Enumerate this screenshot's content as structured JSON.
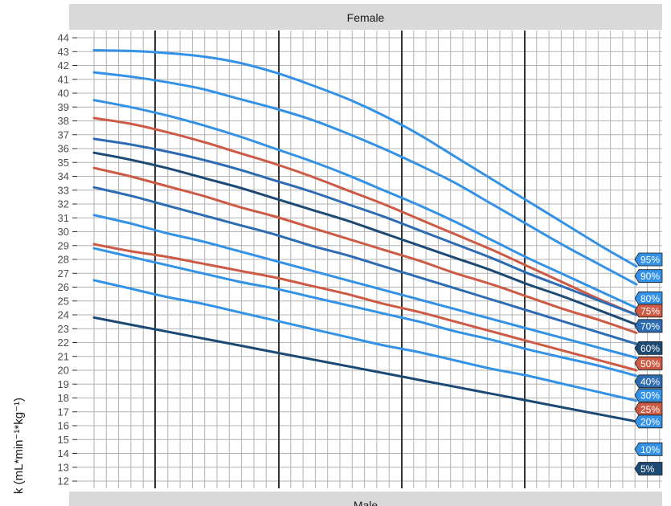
{
  "chart_data": {
    "type": "line",
    "panels": [
      {
        "title": "Female",
        "visible": true
      },
      {
        "title": "Male",
        "visible": false
      }
    ],
    "ylabel_visible": "k (mL*min⁻¹*kg⁻¹)",
    "ylim": [
      12,
      44
    ],
    "yticks": [
      "12",
      "13",
      "14",
      "15",
      "16",
      "17",
      "18",
      "19",
      "20",
      "21",
      "22",
      "23",
      "24",
      "25",
      "26",
      "27",
      "28",
      "29",
      "30",
      "31",
      "32",
      "33",
      "34",
      "35",
      "36",
      "37",
      "38",
      "39",
      "40",
      "41",
      "42",
      "43",
      "44"
    ],
    "x_major_ticks": 4,
    "grid": true,
    "colors": {
      "light": "#3392e6",
      "mid": "#2d6bb3",
      "dark": "#1d4a74",
      "quartile": "#cd5a45",
      "strip_bg": "#d9d9d9",
      "grid": "#b3b3b3",
      "major_grid": "#333333"
    },
    "series": [
      {
        "name": "95%",
        "color": "#3392e6",
        "label_bg": "#3392e6",
        "values": [
          43.1,
          43.05,
          42.9,
          42.65,
          42.2,
          41.5,
          40.6,
          39.6,
          38.4,
          37.0,
          35.4,
          33.8,
          32.2,
          30.6,
          29.0,
          27.5
        ]
      },
      {
        "name": "90%",
        "color": "#3392e6",
        "label_bg": "#3392e6",
        "values": [
          41.5,
          41.2,
          40.8,
          40.3,
          39.6,
          38.9,
          38.1,
          37.1,
          36.0,
          34.8,
          33.5,
          32.0,
          30.5,
          29.0,
          27.6,
          26.2
        ]
      },
      {
        "name": "80%",
        "color": "#3392e6",
        "label_bg": "#3392e6",
        "values": [
          39.5,
          39.0,
          38.4,
          37.7,
          36.9,
          36.0,
          35.1,
          34.1,
          33.0,
          31.9,
          30.7,
          29.4,
          28.1,
          26.9,
          25.7,
          24.5
        ]
      },
      {
        "name": "75%",
        "color": "#cd5a45",
        "label_bg": "#cd5a45",
        "values": [
          38.2,
          37.8,
          37.2,
          36.5,
          35.7,
          34.9,
          34.0,
          33.0,
          32.0,
          30.9,
          29.8,
          28.7,
          27.5,
          26.3,
          25.1,
          24.0
        ]
      },
      {
        "name": "70%",
        "color": "#2d6bb3",
        "label_bg": "#2d6bb3",
        "values": [
          36.7,
          36.3,
          35.8,
          35.2,
          34.5,
          33.7,
          32.9,
          32.0,
          31.1,
          30.1,
          29.1,
          28.1,
          27.0,
          26.0,
          25.0,
          24.0
        ]
      },
      {
        "name": "60%",
        "color": "#1d4a74",
        "label_bg": "#1d4a74",
        "values": [
          35.7,
          35.2,
          34.6,
          33.9,
          33.2,
          32.4,
          31.6,
          30.8,
          29.9,
          29.0,
          28.1,
          27.2,
          26.2,
          25.3,
          24.3,
          23.3
        ]
      },
      {
        "name": "50%",
        "color": "#cd5a45",
        "label_bg": "#cd5a45",
        "values": [
          34.6,
          34.0,
          33.3,
          32.6,
          31.8,
          31.1,
          30.3,
          29.5,
          28.7,
          27.9,
          27.0,
          26.2,
          25.3,
          24.4,
          23.6,
          22.7
        ]
      },
      {
        "name": "40%",
        "color": "#2d6bb3",
        "label_bg": "#2d6bb3",
        "values": [
          33.2,
          32.6,
          31.9,
          31.2,
          30.5,
          29.8,
          29.0,
          28.3,
          27.5,
          26.7,
          25.9,
          25.1,
          24.3,
          23.5,
          22.7,
          21.9
        ]
      },
      {
        "name": "30%",
        "color": "#3392e6",
        "label_bg": "#3392e6",
        "values": [
          31.2,
          30.6,
          29.9,
          29.3,
          28.6,
          27.9,
          27.2,
          26.5,
          25.8,
          25.1,
          24.4,
          23.7,
          23.0,
          22.3,
          21.6,
          20.9
        ]
      },
      {
        "name": "25%",
        "color": "#cd5a45",
        "label_bg": "#cd5a45",
        "values": [
          29.1,
          28.6,
          28.2,
          27.7,
          27.2,
          26.7,
          26.1,
          25.5,
          24.8,
          24.2,
          23.5,
          22.8,
          22.1,
          21.4,
          20.7,
          20.0
        ]
      },
      {
        "name": "20%",
        "color": "#3392e6",
        "label_bg": "#3392e6",
        "values": [
          28.8,
          28.2,
          27.6,
          27.0,
          26.4,
          25.9,
          25.3,
          24.7,
          24.1,
          23.5,
          22.8,
          22.2,
          21.5,
          20.9,
          20.3,
          19.6
        ]
      },
      {
        "name": "10%",
        "color": "#3392e6",
        "label_bg": "#3392e6",
        "values": [
          26.5,
          25.9,
          25.3,
          24.8,
          24.2,
          23.6,
          23.0,
          22.4,
          21.8,
          21.3,
          20.7,
          20.1,
          19.6,
          19.0,
          18.4,
          17.8
        ]
      },
      {
        "name": "5%",
        "color": "#1d4a74",
        "label_bg": "#1d4a74",
        "values": [
          23.8,
          23.3,
          22.8,
          22.3,
          21.8,
          21.3,
          20.8,
          20.3,
          19.8,
          19.3,
          18.8,
          18.3,
          17.8,
          17.3,
          16.8,
          16.3
        ]
      }
    ],
    "label_values": [
      28.0,
      26.8,
      25.2,
      24.3,
      23.2,
      21.6,
      20.5,
      19.2,
      18.2,
      17.2,
      16.3,
      14.3,
      12.9
    ]
  }
}
